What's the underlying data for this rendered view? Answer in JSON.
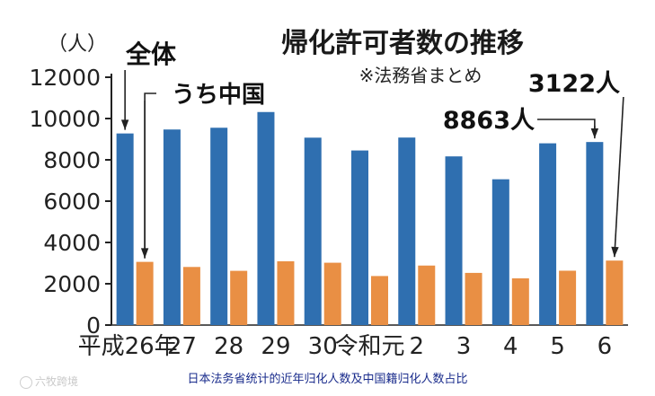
{
  "chart_data": {
    "type": "bar",
    "title": "帰化許可者数の推移",
    "source_note": "※法務省まとめ",
    "y_unit_label": "（人）",
    "ylim": [
      0,
      12000
    ],
    "yticks": [
      0,
      2000,
      4000,
      6000,
      8000,
      10000,
      12000
    ],
    "ytick_labels": [
      "0",
      "2000",
      "4000",
      "6000",
      "8000",
      "10000",
      "12000"
    ],
    "grid": false,
    "categories": [
      "平成26年",
      "27",
      "28",
      "29",
      "30",
      "令和元",
      "2",
      "3",
      "4",
      "5",
      "6"
    ],
    "series": [
      {
        "name": "全体",
        "color": "#2f6fb0",
        "values": [
          9277,
          9469,
          9554,
          10315,
          9074,
          8453,
          9079,
          8167,
          7059,
          8800,
          8863
        ]
      },
      {
        "name": "うち中国",
        "color": "#e98f44",
        "values": [
          3060,
          2813,
          2626,
          3088,
          3018,
          2374,
          2881,
          2526,
          2262,
          2632,
          3122
        ]
      }
    ],
    "annotations": [
      {
        "text": "8863人",
        "target": "全体 6"
      },
      {
        "text": "3122人",
        "target": "うち中国 6"
      }
    ]
  },
  "caption": "日本法务省统计的近年归化人数及中国籍归化人数占比",
  "watermark": "六牧跨境"
}
